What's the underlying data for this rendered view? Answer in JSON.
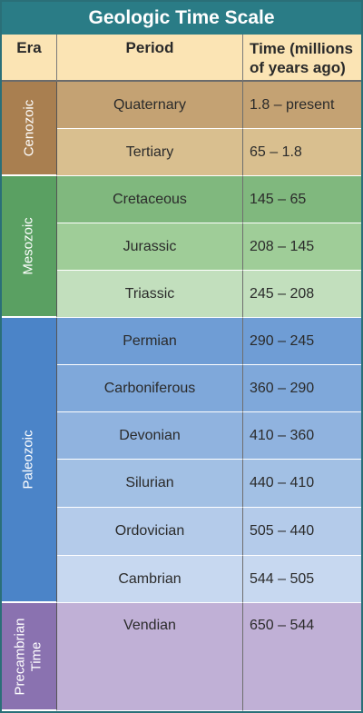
{
  "title": "Geologic Time Scale",
  "headers": {
    "era": "Era",
    "period": "Period",
    "time_line1": "Time (millions",
    "time_line2": "of years ago)"
  },
  "eras": [
    {
      "name": "Cenozoic",
      "color": "#a97f50"
    },
    {
      "name": "Mesozoic",
      "color": "#5aa062"
    },
    {
      "name": "Paleozoic",
      "color": "#4b84c8"
    },
    {
      "name": "Precambrian Time",
      "line1": "Precambrian",
      "line2": "Time",
      "color": "#8a72b0"
    }
  ],
  "periods": [
    {
      "name": "Quaternary",
      "time": "1.8 – present",
      "color": "#c4a273"
    },
    {
      "name": "Tertiary",
      "time": "65 – 1.8",
      "color": "#d9bf8f"
    },
    {
      "name": "Cretaceous",
      "time": "145 – 65",
      "color": "#80b87e"
    },
    {
      "name": "Jurassic",
      "time": "208 – 145",
      "color": "#9fcd98"
    },
    {
      "name": "Triassic",
      "time": "245 – 208",
      "color": "#c2dfbd"
    },
    {
      "name": "Permian",
      "time": "290 – 245",
      "color": "#6f9dd5"
    },
    {
      "name": "Carboniferous",
      "time": "360 – 290",
      "color": "#7fa8da"
    },
    {
      "name": "Devonian",
      "time": "410 – 360",
      "color": "#90b3df"
    },
    {
      "name": "Silurian",
      "time": "440 – 410",
      "color": "#a2c0e4"
    },
    {
      "name": "Ordovician",
      "time": "505 – 440",
      "color": "#b4cbea"
    },
    {
      "name": "Cambrian",
      "time": "544 – 505",
      "color": "#c7d8f0"
    },
    {
      "name": "Vendian",
      "time": "650 – 544",
      "color": "#c0b0d6"
    }
  ]
}
